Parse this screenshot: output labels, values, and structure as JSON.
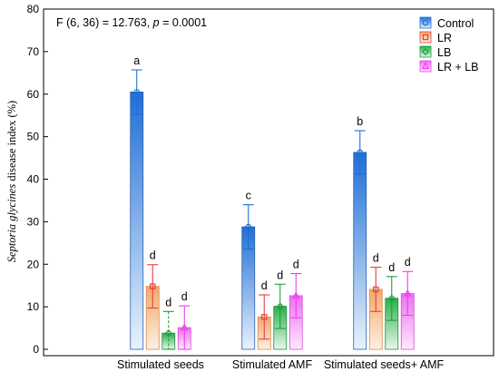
{
  "chart_data": {
    "type": "bar",
    "annotation": {
      "prefix": "F (6, 36) = 12.763, ",
      "p_symbol": "p",
      "suffix": " = 0.0001"
    },
    "ylabel_italic": "Septoria glycines",
    "ylabel_rest": " disease index (%)",
    "ylim": [
      0,
      80
    ],
    "yticks": [
      "0",
      "10",
      "20",
      "30",
      "40",
      "50",
      "60",
      "70",
      "80"
    ],
    "categories": [
      "Stimulated seeds",
      "Stimulated AMF",
      "Stimulated seeds+ AMF"
    ],
    "legend_position": "top-right",
    "grid": false,
    "series": [
      {
        "name": "Control",
        "color": "#1f6fd6",
        "marker": "circle",
        "values": [
          60.5,
          28.8,
          46.3
        ],
        "err_low": [
          55.3,
          23.6,
          41.2
        ],
        "err_high": [
          65.7,
          34.0,
          51.4
        ],
        "sig": [
          "a",
          "c",
          "b"
        ]
      },
      {
        "name": "LR",
        "color": "#e83d3d",
        "marker": "square",
        "values": [
          14.8,
          7.6,
          14.1
        ],
        "err_low": [
          9.7,
          2.4,
          8.9
        ],
        "err_high": [
          19.9,
          12.8,
          19.3
        ],
        "sig": [
          "d",
          "d",
          "d"
        ]
      },
      {
        "name": "LB",
        "color": "#1e9e38",
        "marker": "diamond",
        "values": [
          3.8,
          10.1,
          12.0
        ],
        "err_low": [
          0,
          4.9,
          6.8
        ],
        "err_high": [
          8.9,
          15.3,
          17.1
        ],
        "sig": [
          "d",
          "d",
          "d"
        ]
      },
      {
        "name": "LR + LB",
        "color": "#ee3df0",
        "marker": "triangle",
        "values": [
          5.1,
          12.6,
          13.1
        ],
        "err_low": [
          0,
          7.4,
          8.0
        ],
        "err_high": [
          10.2,
          17.8,
          18.3
        ],
        "sig": [
          "d",
          "d",
          "d"
        ]
      }
    ]
  }
}
